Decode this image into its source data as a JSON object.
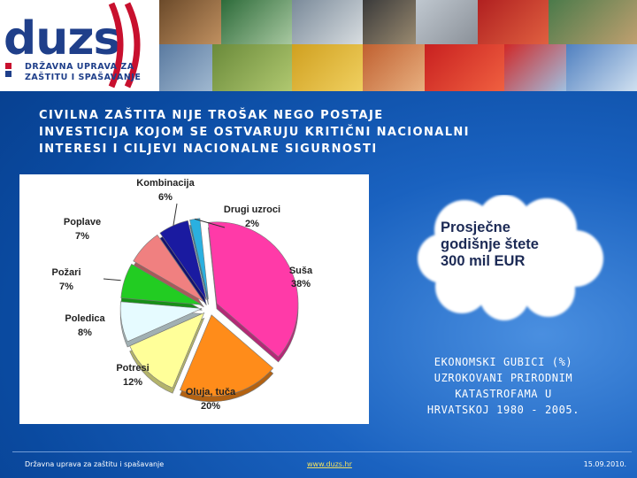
{
  "logo": {
    "wordmark": "duzs",
    "subtitle_line1": "DRŽAVNA UPRAVA ZA",
    "subtitle_line2": "ZAŠTITU I SPAŠAVANJE",
    "accent_color": "#c8102e",
    "brand_color": "#1f3f8a"
  },
  "headline": {
    "line1": "CIVILNA ZAŠTITA NIJE TROŠAK NEGO POSTAJE",
    "line2": "INVESTICIJA KOJOM SE OSTVARUJU KRITIČNI NACIONALNI",
    "line3": "INTERESI I CILJEVI NACIONALNE SIGURNOSTI"
  },
  "chart_data": {
    "type": "pie",
    "title": "",
    "slices": [
      {
        "name": "Suša",
        "value": 38,
        "label": "38%",
        "color": "#ff3aa8"
      },
      {
        "name": "Oluja, tuča",
        "value": 20,
        "label": "20%",
        "color": "#ff8c1a"
      },
      {
        "name": "Potresi",
        "value": 12,
        "label": "12%",
        "color": "#ffff99"
      },
      {
        "name": "Poledica",
        "value": 8,
        "label": "8%",
        "color": "#e6fbff"
      },
      {
        "name": "Požari",
        "value": 7,
        "label": "7%",
        "color": "#22cc22"
      },
      {
        "name": "Poplave",
        "value": 7,
        "label": "7%",
        "color": "#f08080"
      },
      {
        "name": "Kombinacija",
        "value": 6,
        "label": "6%",
        "color": "#1a1aa0"
      },
      {
        "name": "Drugi uzroci",
        "value": 2,
        "label": "2%",
        "color": "#2ab0e0"
      }
    ]
  },
  "cloud": {
    "line1": "Prosječne",
    "line2": "godišnje štete",
    "line3": "300 mil EUR"
  },
  "caption": {
    "line1": "EKONOMSKI GUBICI (%)",
    "line2": "UZROKOVANI PRIRODNIM",
    "line3": "KATASTROFAMA U",
    "line4": "HRVATSKOJ 1980 - 2005."
  },
  "footer": {
    "left": "Državna uprava za zaštitu i spašavanje",
    "link": "www.duzs.hr",
    "date": "15.09.2010."
  }
}
